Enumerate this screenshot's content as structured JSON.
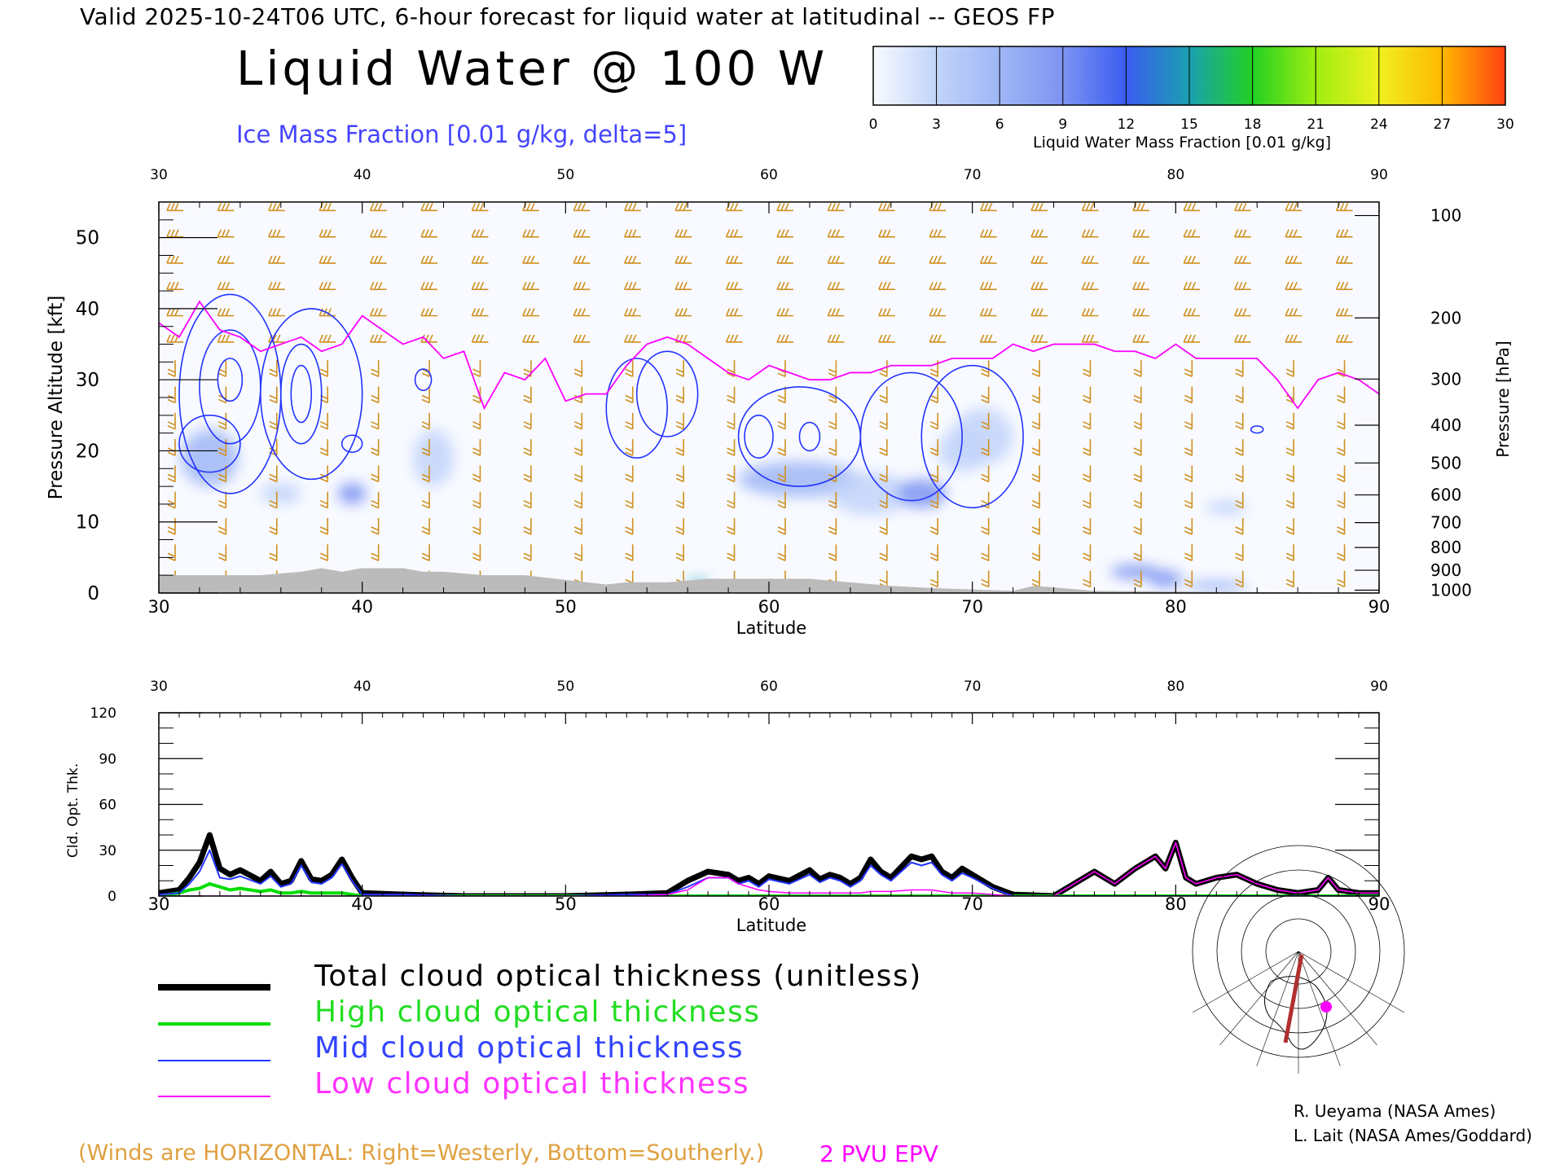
{
  "header": {
    "valid_line": "Valid 2025-10-24T06 UTC, 6-hour forecast for liquid water at latitudinal -- GEOS FP",
    "title": "Liquid Water @ 100 W",
    "subtitle": "Ice Mass Fraction [0.01 g/kg, delta=5]"
  },
  "colorbar": {
    "label": "Liquid Water Mass Fraction [0.01 g/kg]",
    "ticks": [
      "0",
      "3",
      "6",
      "9",
      "12",
      "15",
      "18",
      "21",
      "24",
      "27",
      "30"
    ],
    "colors": [
      "#f8faff",
      "#c2d4fa",
      "#9fb6f6",
      "#7d94f2",
      "#3a5cf0",
      "#1aa0b0",
      "#22d022",
      "#9fee10",
      "#f0f020",
      "#ffb800",
      "#ff4010"
    ]
  },
  "legend": {
    "total": "Total cloud optical thickness (unitless)",
    "high": "High cloud optical thickness",
    "mid": "Mid cloud optical thickness",
    "low": "Low cloud optical thickness"
  },
  "notes": {
    "winds": "(Winds are HORIZONTAL: Right=Westerly, Bottom=Southerly.)",
    "pvu": "2 PVU EPV"
  },
  "credits": [
    "R. Ueyama (NASA Ames)",
    "L. Lait (NASA Ames/Goddard)"
  ],
  "colors": {
    "total": "#000000",
    "high": "#00dd00",
    "mid": "#2233ff",
    "low": "#ff00ff",
    "ice_contour": "#2233ff",
    "epv": "#ff00ff",
    "wind_barbs": "#d09020",
    "terrain": "#bbbbbb",
    "winds_note": "#e0a040"
  },
  "chart_data": [
    {
      "type": "heatmap",
      "xlabel": "Latitude",
      "ylabel": "Pressure Altitude [kft]",
      "ylabel_right": "Pressure [hPa]",
      "xlim": [
        30,
        90
      ],
      "ylim": [
        0,
        55
      ],
      "x_ticks": [
        "30",
        "40",
        "50",
        "60",
        "70",
        "80",
        "90"
      ],
      "y_ticks": [
        "0",
        "10",
        "20",
        "30",
        "40",
        "50"
      ],
      "pressure_ticks": [
        {
          "label": "100",
          "kft": 53.1
        },
        {
          "label": "200",
          "kft": 38.7
        },
        {
          "label": "300",
          "kft": 30.1
        },
        {
          "label": "400",
          "kft": 23.6
        },
        {
          "label": "500",
          "kft": 18.3
        },
        {
          "label": "600",
          "kft": 13.8
        },
        {
          "label": "700",
          "kft": 9.9
        },
        {
          "label": "800",
          "kft": 6.4
        },
        {
          "label": "900",
          "kft": 3.2
        },
        {
          "label": "1000",
          "kft": 0.4
        }
      ],
      "epv_2pvu": {
        "x": [
          30,
          31,
          32,
          33,
          34,
          35,
          36,
          37,
          38,
          39,
          40,
          41,
          42,
          43,
          44,
          45,
          46,
          47,
          48,
          49,
          50,
          51,
          52,
          53,
          54,
          55,
          56,
          57,
          58,
          59,
          60,
          61,
          62,
          63,
          64,
          65,
          66,
          67,
          68,
          69,
          70,
          71,
          72,
          73,
          74,
          75,
          76,
          77,
          78,
          79,
          80,
          81,
          82,
          83,
          84,
          85,
          86,
          87,
          88,
          89,
          90
        ],
        "y": [
          38,
          36,
          41,
          37,
          36,
          34,
          35,
          36,
          34,
          35,
          39,
          37,
          35,
          36,
          33,
          34,
          26,
          31,
          30,
          33,
          27,
          28,
          28,
          32,
          35,
          36,
          35,
          33,
          31,
          30,
          32,
          31,
          30,
          30,
          31,
          31,
          32,
          32,
          32,
          33,
          33,
          33,
          35,
          34,
          35,
          35,
          35,
          34,
          34,
          33,
          35,
          33,
          33,
          33,
          33,
          30,
          26,
          30,
          31,
          30,
          28
        ]
      },
      "liquid_patches": [
        {
          "lat": 32.5,
          "kft": 19,
          "value": 7,
          "rx": 1.4,
          "ry": 4
        },
        {
          "lat": 36.0,
          "kft": 14,
          "value": 4,
          "rx": 1.0,
          "ry": 1.5
        },
        {
          "lat": 39.5,
          "kft": 14,
          "value": 10,
          "rx": 0.7,
          "ry": 1.5
        },
        {
          "lat": 43.5,
          "kft": 19,
          "value": 3,
          "rx": 1.0,
          "ry": 4
        },
        {
          "lat": 61.5,
          "kft": 16,
          "value": 7,
          "rx": 3.0,
          "ry": 2.5
        },
        {
          "lat": 65.0,
          "kft": 14,
          "value": 5,
          "rx": 2.0,
          "ry": 3
        },
        {
          "lat": 67.5,
          "kft": 14,
          "value": 9,
          "rx": 1.2,
          "ry": 2
        },
        {
          "lat": 69.5,
          "kft": 20,
          "value": 5,
          "rx": 1.2,
          "ry": 3
        },
        {
          "lat": 70.5,
          "kft": 22,
          "value": 4,
          "rx": 1.5,
          "ry": 4
        },
        {
          "lat": 78.0,
          "kft": 3,
          "value": 9,
          "rx": 1.2,
          "ry": 1
        },
        {
          "lat": 79.5,
          "kft": 2,
          "value": 10,
          "rx": 0.8,
          "ry": 1.2
        },
        {
          "lat": 82.5,
          "kft": 12,
          "value": 4,
          "rx": 1.0,
          "ry": 1
        },
        {
          "lat": 82.0,
          "kft": 1,
          "value": 8,
          "rx": 1.5,
          "ry": 0.8
        },
        {
          "lat": 56.5,
          "kft": 1.5,
          "value": 16,
          "rx": 0.5,
          "ry": 0.4
        }
      ],
      "ice_contours": [
        {
          "lat": 33.5,
          "kft": 28,
          "rx": 2.5,
          "ry": 14
        },
        {
          "lat": 33.5,
          "kft": 29,
          "rx": 1.5,
          "ry": 8
        },
        {
          "lat": 33.5,
          "kft": 30,
          "rx": 0.6,
          "ry": 3
        },
        {
          "lat": 32.5,
          "kft": 21,
          "rx": 1.5,
          "ry": 4
        },
        {
          "lat": 37.5,
          "kft": 28,
          "rx": 2.5,
          "ry": 12
        },
        {
          "lat": 37.0,
          "kft": 28,
          "rx": 1.0,
          "ry": 7
        },
        {
          "lat": 37.0,
          "kft": 28,
          "rx": 0.5,
          "ry": 4
        },
        {
          "lat": 39.5,
          "kft": 21,
          "rx": 0.5,
          "ry": 1.2
        },
        {
          "lat": 43.0,
          "kft": 30,
          "rx": 0.4,
          "ry": 1.5
        },
        {
          "lat": 53.5,
          "kft": 26,
          "rx": 1.5,
          "ry": 7
        },
        {
          "lat": 55.0,
          "kft": 28,
          "rx": 1.5,
          "ry": 6
        },
        {
          "lat": 61.5,
          "kft": 22,
          "rx": 3.0,
          "ry": 7
        },
        {
          "lat": 59.5,
          "kft": 22,
          "rx": 0.7,
          "ry": 3
        },
        {
          "lat": 62.0,
          "kft": 22,
          "rx": 0.5,
          "ry": 2
        },
        {
          "lat": 67.0,
          "kft": 22,
          "rx": 2.5,
          "ry": 9
        },
        {
          "lat": 70.0,
          "kft": 22,
          "rx": 2.5,
          "ry": 10
        },
        {
          "lat": 84.0,
          "kft": 23,
          "rx": 0.3,
          "ry": 0.5
        }
      ],
      "terrain": {
        "x": [
          30,
          33,
          35,
          37,
          38,
          39,
          40,
          41,
          42,
          43,
          44,
          46,
          48,
          52,
          53,
          55,
          57,
          58,
          60,
          62,
          64,
          66,
          68,
          70,
          72,
          73,
          74,
          76,
          90
        ],
        "y": [
          2.5,
          2.5,
          2.5,
          3.0,
          3.5,
          3.0,
          3.5,
          3.5,
          3.5,
          3.0,
          3.0,
          2.5,
          2.5,
          1.2,
          1.5,
          1.5,
          2.0,
          2.0,
          2.0,
          2.0,
          1.5,
          1.0,
          0.7,
          0.5,
          0.3,
          1.0,
          0.8,
          0.3,
          0
        ]
      }
    },
    {
      "type": "line",
      "xlabel": "Latitude",
      "ylabel": "Cld. Opt. Thk.",
      "xlim": [
        30,
        90
      ],
      "ylim": [
        0,
        120
      ],
      "x_ticks": [
        "30",
        "40",
        "50",
        "60",
        "70",
        "80",
        "90"
      ],
      "y_ticks": [
        "0",
        "30",
        "60",
        "90",
        "120"
      ],
      "x": [
        30,
        31,
        31.5,
        32,
        32.5,
        33,
        33.5,
        34,
        35,
        35.5,
        36,
        36.5,
        37,
        37.5,
        38,
        38.5,
        39,
        39.5,
        40,
        42,
        45,
        50,
        53,
        55,
        56,
        57,
        58,
        58.5,
        59,
        59.5,
        60,
        61,
        62,
        62.5,
        63,
        63.5,
        64,
        64.5,
        65,
        65.5,
        66,
        67,
        67.5,
        68,
        68.5,
        69,
        69.5,
        70,
        71,
        72,
        74,
        75,
        76,
        77,
        78,
        79,
        79.5,
        80,
        80.5,
        81,
        82,
        83,
        84,
        85,
        86,
        87,
        87.5,
        88,
        89,
        90
      ],
      "series": [
        {
          "name": "Total cloud optical thickness (unitless)",
          "key": "total",
          "values": [
            2,
            4,
            12,
            22,
            40,
            18,
            14,
            17,
            10,
            16,
            8,
            10,
            23,
            11,
            10,
            14,
            24,
            12,
            2,
            1,
            0,
            0,
            1,
            2,
            10,
            16,
            14,
            10,
            12,
            8,
            13,
            10,
            17,
            11,
            14,
            12,
            8,
            12,
            24,
            16,
            12,
            26,
            24,
            26,
            16,
            12,
            18,
            14,
            6,
            1,
            0,
            8,
            16,
            8,
            18,
            26,
            18,
            35,
            12,
            8,
            12,
            14,
            8,
            4,
            2,
            4,
            12,
            4,
            2,
            2
          ]
        },
        {
          "name": "High cloud optical thickness",
          "key": "high",
          "values": [
            0,
            2,
            4,
            5,
            8,
            6,
            4,
            5,
            3,
            4,
            2,
            2,
            3,
            2,
            2,
            2,
            2,
            1,
            0,
            0,
            0,
            0,
            0,
            0,
            0,
            0,
            0,
            0,
            0,
            0,
            0,
            0,
            0,
            0,
            0,
            0,
            0,
            0,
            0,
            0,
            0,
            0,
            0,
            0,
            0,
            0,
            0,
            0,
            0,
            0,
            0,
            0,
            0,
            0,
            0,
            0,
            0,
            0,
            0,
            0,
            0,
            0,
            0,
            0,
            0,
            0,
            0,
            0,
            0,
            0
          ]
        },
        {
          "name": "Mid cloud optical thickness",
          "key": "mid",
          "values": [
            1,
            2,
            8,
            16,
            30,
            12,
            11,
            13,
            8,
            13,
            6,
            8,
            20,
            9,
            8,
            12,
            21,
            10,
            1,
            1,
            0,
            0,
            1,
            1,
            6,
            12,
            12,
            8,
            10,
            6,
            11,
            8,
            14,
            9,
            12,
            10,
            6,
            10,
            20,
            14,
            10,
            22,
            20,
            22,
            14,
            10,
            15,
            12,
            5,
            0,
            0,
            0,
            0,
            0,
            0,
            0,
            0,
            0,
            0,
            0,
            0,
            0,
            0,
            0,
            0,
            0,
            0,
            0,
            0,
            0
          ]
        },
        {
          "name": "Low cloud optical thickness",
          "key": "low",
          "values": [
            0,
            0,
            0,
            0,
            0,
            0,
            0,
            0,
            0,
            0,
            0,
            0,
            0,
            0,
            0,
            0,
            0,
            0,
            0,
            0,
            0,
            0,
            0,
            1,
            4,
            12,
            12,
            8,
            6,
            4,
            3,
            2,
            2,
            2,
            2,
            2,
            2,
            2,
            3,
            3,
            3,
            4,
            4,
            4,
            3,
            2,
            2,
            2,
            1,
            0,
            0,
            8,
            16,
            8,
            18,
            26,
            18,
            35,
            12,
            8,
            12,
            14,
            8,
            4,
            2,
            4,
            12,
            4,
            2,
            2
          ]
        }
      ]
    }
  ]
}
